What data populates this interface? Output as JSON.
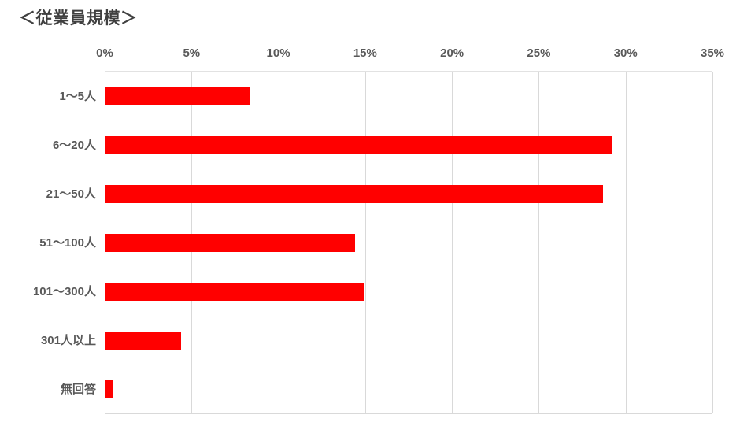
{
  "title": "＜従業員規模＞",
  "chart_data": {
    "type": "bar",
    "orientation": "horizontal",
    "title": "＜従業員規模＞",
    "categories": [
      "1～5人",
      "6～20人",
      "21～50人",
      "51～100人",
      "101～300人",
      "301人以上",
      "無回答"
    ],
    "values": [
      8.4,
      29.2,
      28.7,
      14.4,
      14.9,
      4.4,
      0.5
    ],
    "unit": "%",
    "xlabel": "",
    "ylabel": "",
    "xlim": [
      0,
      35
    ],
    "x_ticks": [
      "0%",
      "5%",
      "10%",
      "15%",
      "20%",
      "25%",
      "30%",
      "35%"
    ],
    "x_tick_values": [
      0,
      5,
      10,
      15,
      20,
      25,
      30,
      35
    ],
    "grid": true,
    "legend": "none",
    "axis_position": "top",
    "colors": {
      "bar": "#ff0000",
      "gridline": "#d9d9d9",
      "tick_label": "#595959",
      "category_label": "#595959",
      "title": "#404040",
      "background": "#ffffff"
    }
  }
}
